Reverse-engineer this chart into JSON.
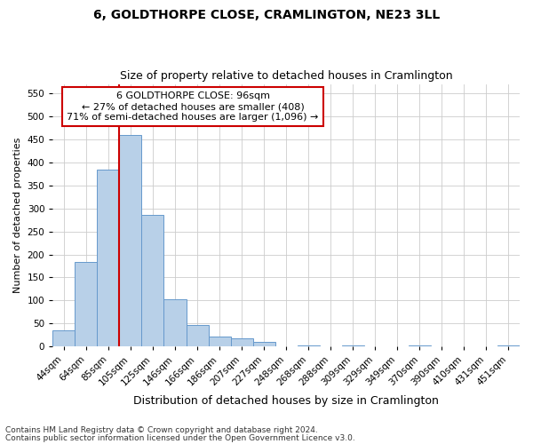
{
  "title": "6, GOLDTHORPE CLOSE, CRAMLINGTON, NE23 3LL",
  "subtitle": "Size of property relative to detached houses in Cramlington",
  "xlabel": "Distribution of detached houses by size in Cramlington",
  "ylabel": "Number of detached properties",
  "footnote1": "Contains HM Land Registry data © Crown copyright and database right 2024.",
  "footnote2": "Contains public sector information licensed under the Open Government Licence v3.0.",
  "categories": [
    "44sqm",
    "64sqm",
    "85sqm",
    "105sqm",
    "125sqm",
    "146sqm",
    "166sqm",
    "186sqm",
    "207sqm",
    "227sqm",
    "248sqm",
    "268sqm",
    "288sqm",
    "309sqm",
    "329sqm",
    "349sqm",
    "370sqm",
    "390sqm",
    "410sqm",
    "431sqm",
    "451sqm"
  ],
  "values": [
    35,
    183,
    385,
    460,
    285,
    103,
    47,
    22,
    17,
    10,
    0,
    3,
    0,
    3,
    0,
    0,
    3,
    0,
    0,
    0,
    3
  ],
  "bar_color": "#b8d0e8",
  "bar_edge_color": "#6699cc",
  "red_line_x": 2.5,
  "annotation_line1": "6 GOLDTHORPE CLOSE: 96sqm",
  "annotation_line2": "← 27% of detached houses are smaller (408)",
  "annotation_line3": "71% of semi-detached houses are larger (1,096) →",
  "annotation_box_facecolor": "#ffffff",
  "annotation_box_edgecolor": "#cc0000",
  "ylim": [
    0,
    570
  ],
  "yticks": [
    0,
    50,
    100,
    150,
    200,
    250,
    300,
    350,
    400,
    450,
    500,
    550
  ],
  "bg_color": "#ffffff",
  "grid_color": "#cccccc",
  "title_fontsize": 10,
  "subtitle_fontsize": 9,
  "ylabel_fontsize": 8,
  "xlabel_fontsize": 9,
  "tick_fontsize": 7.5,
  "footnote_fontsize": 6.5,
  "annotation_fontsize": 8
}
